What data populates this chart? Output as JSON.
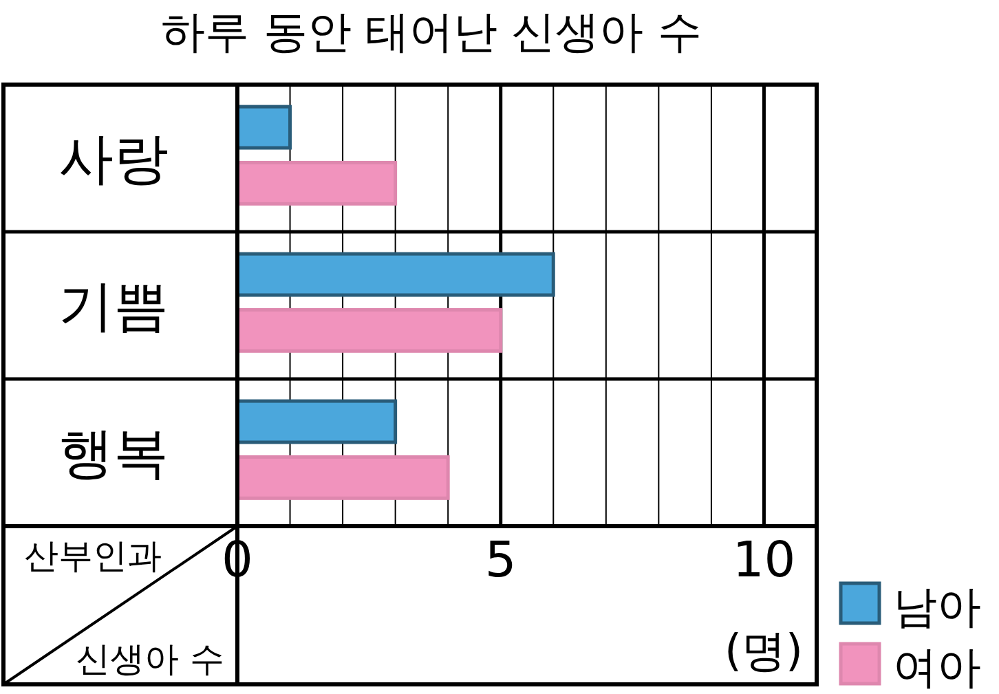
{
  "chart_data": {
    "type": "bar",
    "orientation": "horizontal",
    "title": "하루 동안 태어난 신생아 수",
    "ylabel": "산부인과",
    "xlabel": "신생아 수",
    "annotations": [
      "(명)"
    ],
    "categories": [
      "사랑",
      "기쁨",
      "행복"
    ],
    "series": [
      {
        "name": "남아",
        "color": "#4ba7dc",
        "values": [
          1,
          6,
          3
        ]
      },
      {
        "name": "여아",
        "color": "#f193bd",
        "values": [
          3,
          5,
          4
        ]
      }
    ],
    "xlim": [
      0,
      11
    ],
    "xticks": [
      0,
      {
        "value": 1,
        "label": null
      },
      {
        "value": 2,
        "label": null
      },
      {
        "value": 3,
        "label": null
      },
      {
        "value": 4,
        "label": null
      },
      5,
      {
        "value": 6,
        "label": null
      },
      {
        "value": 7,
        "label": null
      },
      {
        "value": 8,
        "label": null
      },
      {
        "value": 9,
        "label": null
      },
      10
    ],
    "grid": "x",
    "legend": "bottom right"
  }
}
